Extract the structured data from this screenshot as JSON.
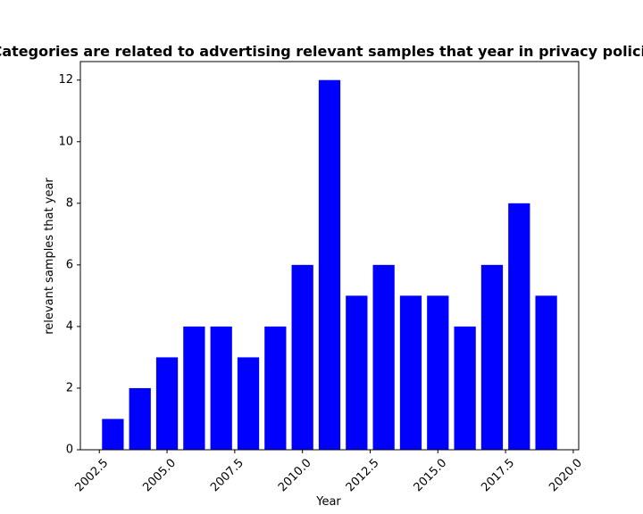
{
  "chart_data": {
    "type": "bar",
    "title": "Categories are related to advertising relevant samples that year in privacy policies",
    "xlabel": "Year",
    "ylabel": "relevant samples that year",
    "x": [
      2003,
      2004,
      2005,
      2006,
      2007,
      2008,
      2009,
      2010,
      2011,
      2012,
      2013,
      2014,
      2015,
      2016,
      2017,
      2018,
      2019
    ],
    "values": [
      1,
      2,
      3,
      4,
      4,
      3,
      4,
      6,
      12,
      5,
      6,
      5,
      5,
      4,
      6,
      8,
      5
    ],
    "bar_width": 0.8,
    "xlim": [
      2001.8,
      2020.2
    ],
    "ylim": [
      0,
      12.6
    ],
    "xticks": [
      2002.5,
      2005.0,
      2007.5,
      2010.0,
      2012.5,
      2015.0,
      2017.5,
      2020.0
    ],
    "xtick_labels": [
      "2002.5",
      "2005.0",
      "2007.5",
      "2010.0",
      "2012.5",
      "2015.0",
      "2017.5",
      "2020.0"
    ],
    "yticks": [
      0,
      2,
      4,
      6,
      8,
      10,
      12
    ],
    "ytick_labels": [
      "0",
      "2",
      "4",
      "6",
      "8",
      "10",
      "12"
    ],
    "bar_color": "#0000ff",
    "grid": false,
    "legend": "none"
  }
}
